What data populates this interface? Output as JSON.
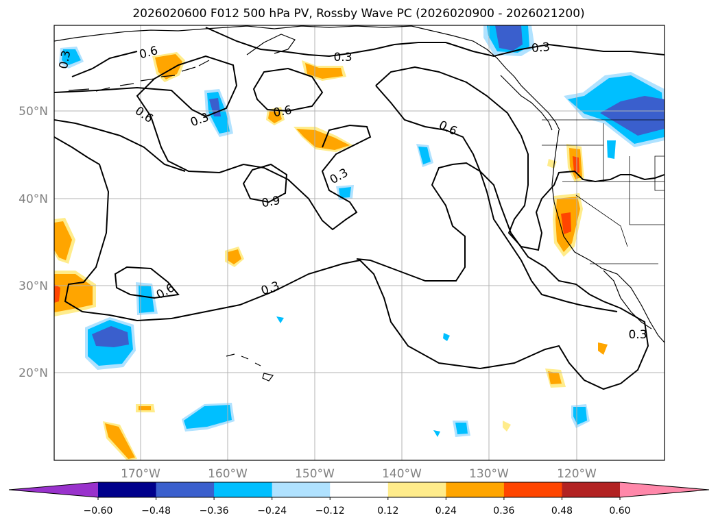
{
  "title": "2026020600 F012 500 hPa PV, Rossby Wave PC (2026020900 - 2026021200)",
  "map": {
    "lon_ticks": [
      "170°W",
      "160°W",
      "150°W",
      "140°W",
      "130°W",
      "120°W"
    ],
    "lat_ticks": [
      "50°N",
      "40°N",
      "30°N",
      "20°N"
    ],
    "gridlines": true
  },
  "pv_contour_labels": [
    "0.3",
    "0.6",
    "0.6",
    "0.3",
    "0.6",
    "0.6",
    "0.3",
    "0.3",
    "0.9",
    "0.6",
    "0.3",
    "0.3",
    "0.3"
  ],
  "colorbar": {
    "tick_labels": [
      "−0.60",
      "−0.48",
      "−0.36",
      "−0.24",
      "−0.12",
      "0.12",
      "0.24",
      "0.36",
      "0.48",
      "0.60"
    ],
    "colors": [
      "#9932cc",
      "#00008b",
      "#3a5fcd",
      "#00bfff",
      "#b0e2ff",
      "#ffffff",
      "#ffec8b",
      "#ffa500",
      "#ff4500",
      "#b22222",
      "#ff88aa"
    ]
  },
  "colors": {
    "neg_dark": "#3a5fcd",
    "neg_mid": "#00bfff",
    "neg_light": "#b0e2ff",
    "pos_light": "#ffec8b",
    "pos_mid": "#ffa500",
    "pos_strong": "#ff4500"
  }
}
